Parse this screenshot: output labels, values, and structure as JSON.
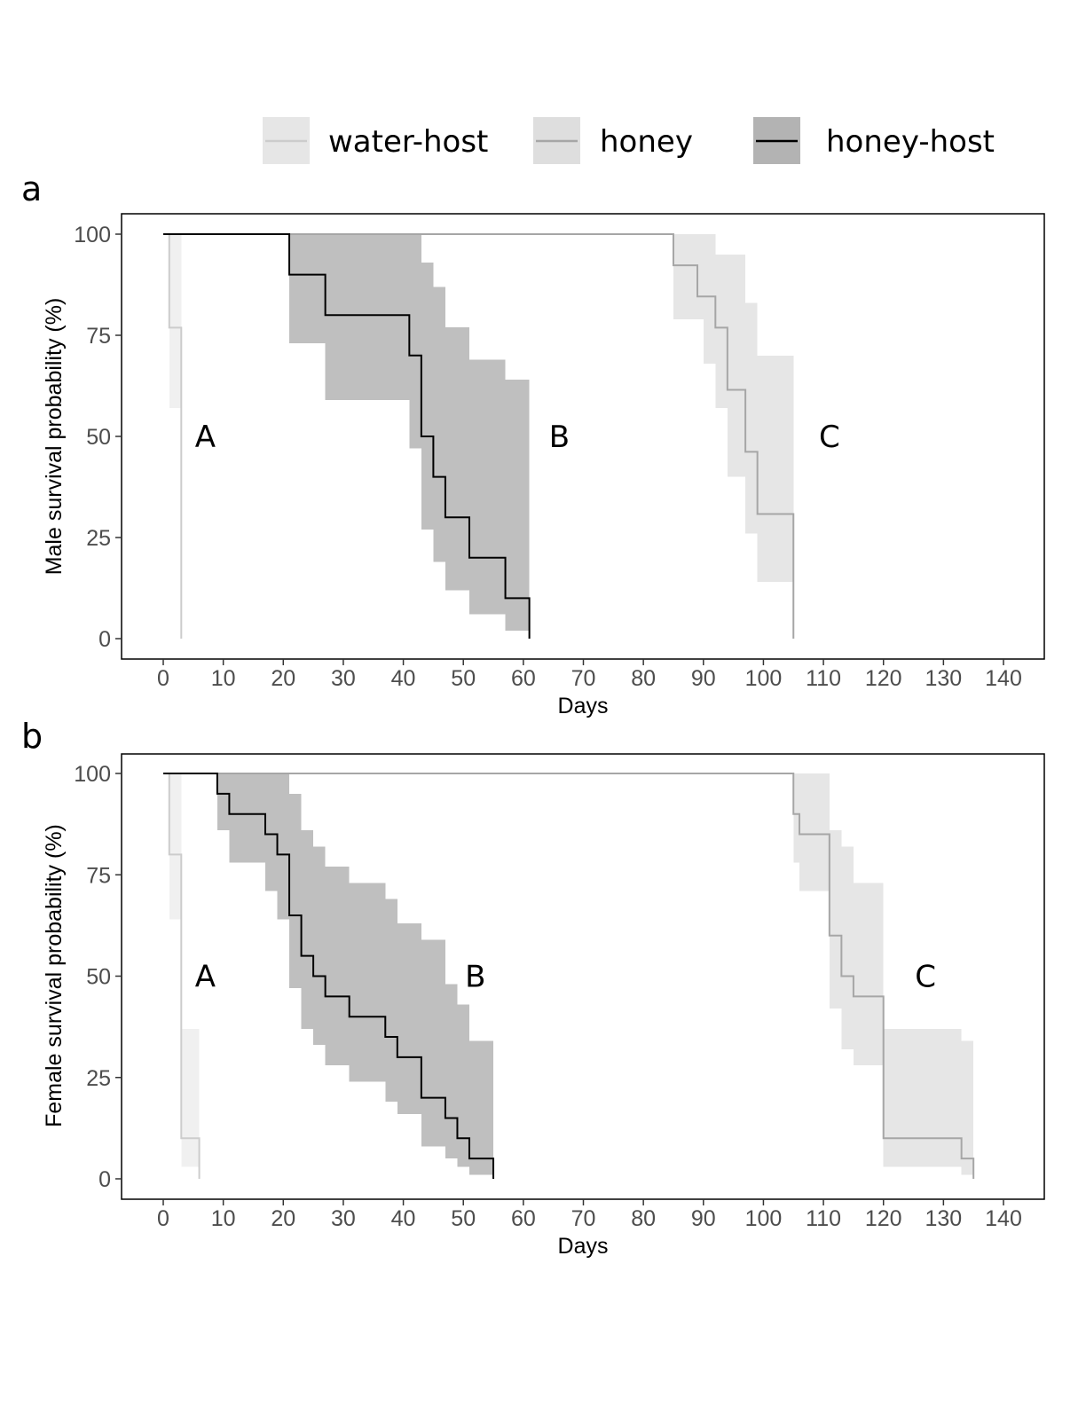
{
  "legend": {
    "entries": [
      {
        "label": "water-host",
        "box_fill": "#e6e6e6",
        "line_color": "#cccccc"
      },
      {
        "label": "honey",
        "box_fill": "#dedede",
        "line_color": "#a6a6a6"
      },
      {
        "label": "honey-host",
        "box_fill": "#b3b3b3",
        "line_color": "#000000"
      }
    ]
  },
  "chart_data": [
    {
      "panel": "a",
      "type": "line",
      "step": true,
      "xlabel": "Days",
      "ylabel": "Male survival probability (%)",
      "xlim": [
        0,
        140
      ],
      "ylim": [
        0,
        100
      ],
      "xticks": [
        0,
        10,
        20,
        30,
        40,
        50,
        60,
        70,
        80,
        90,
        100,
        110,
        120,
        130,
        140
      ],
      "yticks": [
        0,
        25,
        50,
        75,
        100
      ],
      "grid": false,
      "group_labels": [
        {
          "text": "A",
          "x": 7,
          "y": 50
        },
        {
          "text": "B",
          "x": 66,
          "y": 50
        },
        {
          "text": "C",
          "x": 111,
          "y": 50
        }
      ],
      "series": [
        {
          "name": "water-host",
          "line_color": "#cccccc",
          "band_color": "#f0f0f0",
          "steps": [
            [
              0,
              100
            ],
            [
              1,
              76.9
            ],
            [
              3,
              0
            ]
          ],
          "band": [
            [
              0,
              100,
              100
            ],
            [
              1,
              57,
              100
            ],
            [
              3,
              57,
              100
            ]
          ]
        },
        {
          "name": "honey",
          "line_color": "#a6a6a6",
          "band_color": "#e6e6e6",
          "steps": [
            [
              0,
              100
            ],
            [
              85,
              92.3
            ],
            [
              89,
              84.6
            ],
            [
              92,
              76.9
            ],
            [
              94,
              61.5
            ],
            [
              97,
              46.2
            ],
            [
              99,
              30.8
            ],
            [
              105,
              0
            ]
          ],
          "band": [
            [
              0,
              100,
              100
            ],
            [
              85,
              79,
              100
            ],
            [
              90,
              68,
              100
            ],
            [
              92,
              57,
              95
            ],
            [
              94,
              40,
              95
            ],
            [
              97,
              26,
              83
            ],
            [
              99,
              14,
              70
            ],
            [
              105,
              14,
              70
            ]
          ]
        },
        {
          "name": "honey-host",
          "line_color": "#000000",
          "band_color": "#bfbfbf",
          "steps": [
            [
              0,
              100
            ],
            [
              21,
              90
            ],
            [
              27,
              80
            ],
            [
              41,
              70
            ],
            [
              43,
              50
            ],
            [
              45,
              40
            ],
            [
              47,
              30
            ],
            [
              51,
              20
            ],
            [
              57,
              10
            ],
            [
              61,
              0
            ]
          ],
          "band": [
            [
              21,
              73,
              100
            ],
            [
              27,
              59,
              100
            ],
            [
              41,
              47,
              100
            ],
            [
              43,
              27,
              93
            ],
            [
              45,
              19,
              87
            ],
            [
              47,
              12,
              77
            ],
            [
              51,
              6,
              69
            ],
            [
              57,
              2,
              64
            ],
            [
              61,
              2,
              64
            ]
          ]
        }
      ]
    },
    {
      "panel": "b",
      "type": "line",
      "step": true,
      "xlabel": "Days",
      "ylabel": "Female survival probability (%)",
      "xlim": [
        0,
        140
      ],
      "ylim": [
        0,
        100
      ],
      "xticks": [
        0,
        10,
        20,
        30,
        40,
        50,
        60,
        70,
        80,
        90,
        100,
        110,
        120,
        130,
        140
      ],
      "yticks": [
        0,
        25,
        50,
        75,
        100
      ],
      "grid": false,
      "group_labels": [
        {
          "text": "A",
          "x": 7,
          "y": 50
        },
        {
          "text": "B",
          "x": 52,
          "y": 50
        },
        {
          "text": "C",
          "x": 127,
          "y": 50
        }
      ],
      "series": [
        {
          "name": "water-host",
          "line_color": "#cccccc",
          "band_color": "#f0f0f0",
          "steps": [
            [
              0,
              100
            ],
            [
              1,
              80
            ],
            [
              3,
              10
            ],
            [
              6,
              0
            ]
          ],
          "band": [
            [
              0,
              100,
              100
            ],
            [
              1,
              64,
              100
            ],
            [
              3,
              3,
              37
            ],
            [
              6,
              3,
              37
            ]
          ]
        },
        {
          "name": "honey",
          "line_color": "#a6a6a6",
          "band_color": "#e6e6e6",
          "steps": [
            [
              0,
              100
            ],
            [
              105,
              90
            ],
            [
              106,
              85
            ],
            [
              111,
              60
            ],
            [
              113,
              50
            ],
            [
              115,
              45
            ],
            [
              120,
              10
            ],
            [
              133,
              5
            ],
            [
              135,
              0
            ]
          ],
          "band": [
            [
              0,
              100,
              100
            ],
            [
              105,
              78,
              100
            ],
            [
              106,
              71,
              100
            ],
            [
              111,
              42,
              86
            ],
            [
              113,
              32,
              82
            ],
            [
              115,
              28,
              73
            ],
            [
              120,
              3,
              37
            ],
            [
              133,
              1,
              34
            ],
            [
              135,
              1,
              34
            ]
          ]
        },
        {
          "name": "honey-host",
          "line_color": "#000000",
          "band_color": "#bfbfbf",
          "steps": [
            [
              0,
              100
            ],
            [
              9,
              95
            ],
            [
              11,
              90
            ],
            [
              17,
              85
            ],
            [
              19,
              80
            ],
            [
              21,
              65
            ],
            [
              23,
              55
            ],
            [
              25,
              50
            ],
            [
              27,
              45
            ],
            [
              31,
              40
            ],
            [
              37,
              35
            ],
            [
              39,
              30
            ],
            [
              43,
              20
            ],
            [
              47,
              15
            ],
            [
              49,
              10
            ],
            [
              51,
              5
            ],
            [
              55,
              0
            ]
          ],
          "band": [
            [
              9,
              86,
              100
            ],
            [
              11,
              78,
              100
            ],
            [
              17,
              71,
              100
            ],
            [
              19,
              64,
              100
            ],
            [
              21,
              47,
              95
            ],
            [
              23,
              37,
              86
            ],
            [
              25,
              33,
              82
            ],
            [
              27,
              28,
              77
            ],
            [
              31,
              24,
              73
            ],
            [
              37,
              19,
              69
            ],
            [
              39,
              16,
              63
            ],
            [
              43,
              8,
              59
            ],
            [
              47,
              5,
              48
            ],
            [
              49,
              3,
              43
            ],
            [
              51,
              1,
              34
            ],
            [
              55,
              1,
              34
            ]
          ]
        }
      ]
    }
  ]
}
